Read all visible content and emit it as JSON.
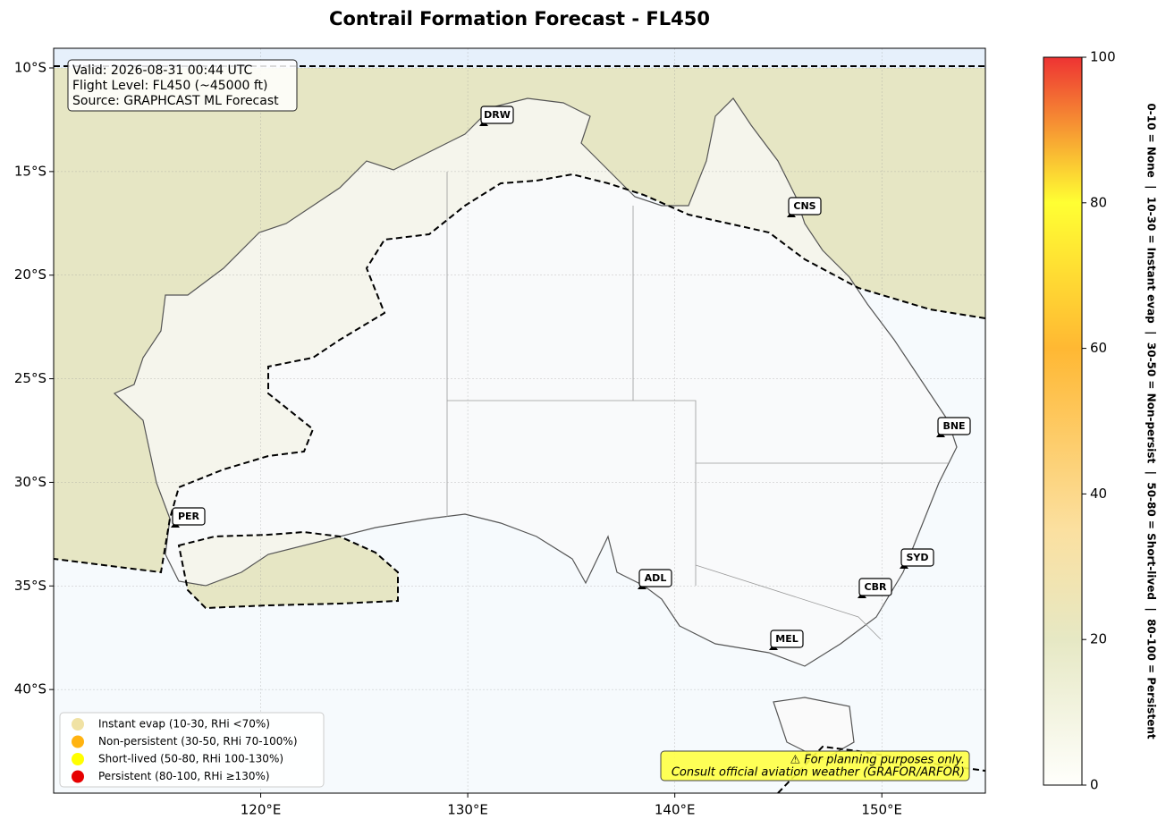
{
  "title": "Contrail Formation Forecast - FL450",
  "map": {
    "xlim": [
      110,
      155
    ],
    "ylim": [
      -45,
      -9.05
    ],
    "xticks": [
      {
        "value": 120,
        "label": "120°E"
      },
      {
        "value": 130,
        "label": "130°E"
      },
      {
        "value": 140,
        "label": "140°E"
      },
      {
        "value": 150,
        "label": "150°E"
      }
    ],
    "yticks": [
      {
        "value": -10,
        "label": "10°S"
      },
      {
        "value": -15,
        "label": "15°S"
      },
      {
        "value": -20,
        "label": "20°S"
      },
      {
        "value": -25,
        "label": "25°S"
      },
      {
        "value": -30,
        "label": "30°S"
      },
      {
        "value": -35,
        "label": "35°S"
      },
      {
        "value": -40,
        "label": "40°S"
      }
    ],
    "grid": true,
    "info": [
      "Valid: 2026-08-31 00:44 UTC",
      "Flight Level: FL450 (~45000 ft)",
      "Source: GRAPHCAST ML Forecast"
    ],
    "airports": [
      "DRW",
      "CNS",
      "BNE",
      "PER",
      "ADL",
      "SYD",
      "CBR",
      "MEL"
    ],
    "legend": [
      {
        "name": "Instant evap (10-30, RHi <70%)",
        "color": "#f0e2a4"
      },
      {
        "name": "Non-persistent (30-50, RHi 70-100%)",
        "color": "#ffb310"
      },
      {
        "name": "Short-lived (50-80, RHi 100-130%)",
        "color": "#ffff00"
      },
      {
        "name": "Persistent (80-100, RHi ≥130%)",
        "color": "#e60000"
      }
    ],
    "disclaimer": [
      "⚠ For planning purposes only.",
      "Consult official aviation weather (GRAFOR/ARFOR)"
    ]
  },
  "colorbar": {
    "lim": [
      0,
      100
    ],
    "ticks": [
      0,
      20,
      40,
      60,
      80,
      100
    ],
    "label": "0-10 = None  |  10-30 = Instant evap  |  30-50 = Non-persist  |  50-80 = Short-lived  |  80-100 = Persistent"
  }
}
